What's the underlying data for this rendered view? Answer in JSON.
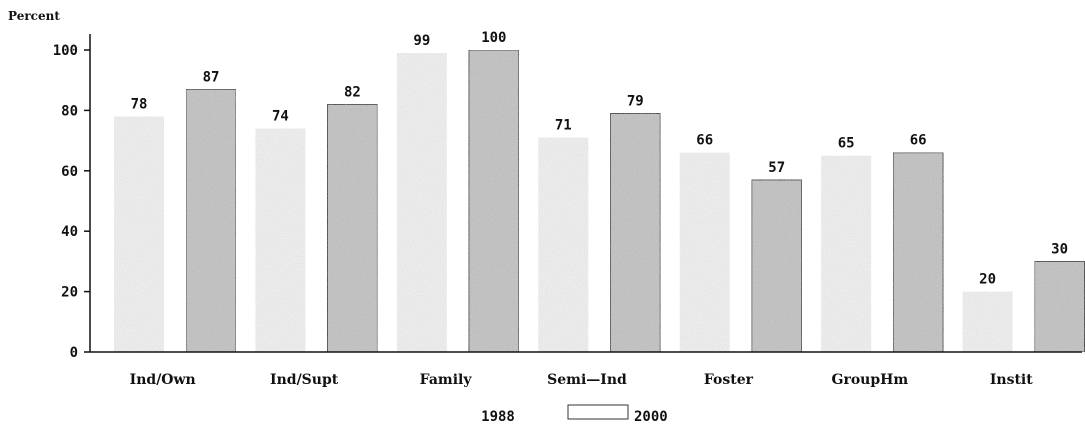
{
  "chart_data": {
    "type": "bar",
    "ylabel": "Percent",
    "ylim": [
      0,
      100
    ],
    "yticks": [
      "0",
      "20",
      "40",
      "60",
      "80",
      "100"
    ],
    "categories": [
      "Ind/Own",
      "Ind/Supt",
      "Family",
      "Semi—Ind",
      "Foster",
      "GroupHm",
      "Instit"
    ],
    "series": [
      {
        "name": "1988",
        "values": [
          78,
          74,
          99,
          71,
          66,
          65,
          20
        ],
        "color": "#f2f2f2"
      },
      {
        "name": "2000",
        "values": [
          87,
          82,
          100,
          79,
          57,
          66,
          30
        ],
        "color": "#c2c2c2"
      }
    ],
    "legend_position": "bottom",
    "grid": false
  }
}
